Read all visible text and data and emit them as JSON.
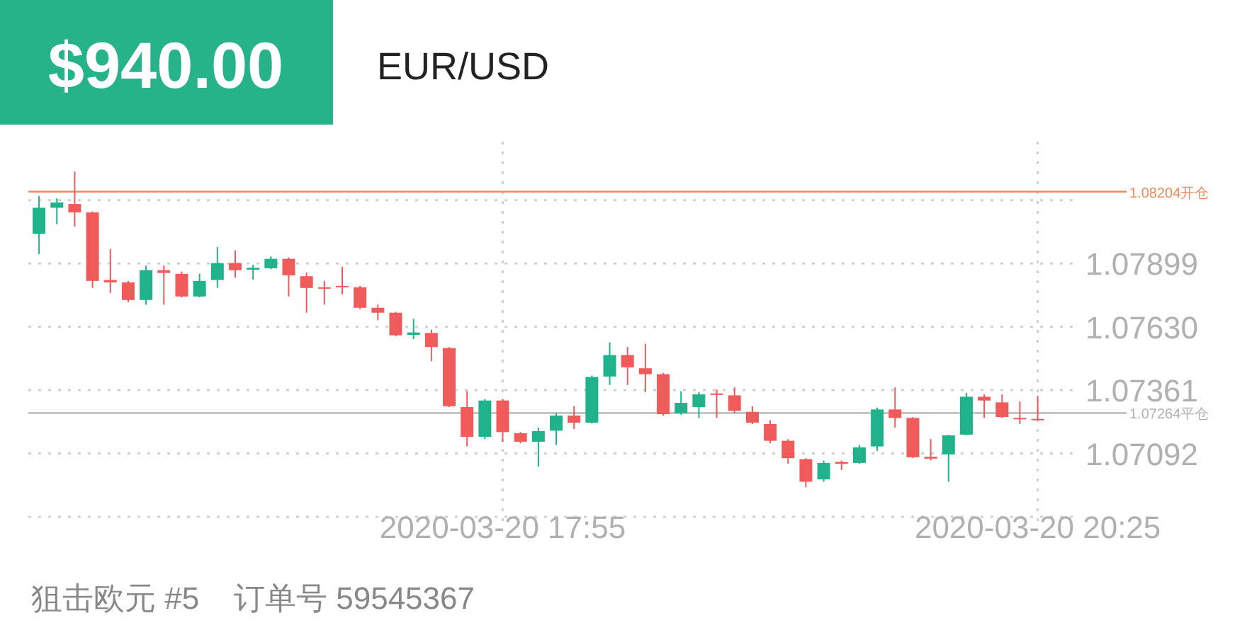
{
  "chart_data": {
    "type": "candlestick",
    "title": "$940.00",
    "subtitle": "EUR/USD",
    "annotations": [
      "狙击欧元 #5",
      "订单号 59545367"
    ],
    "x": [
      "2020-03-20T15:45",
      "2020-03-20T15:50",
      "2020-03-20T15:55",
      "2020-03-20T16:00",
      "2020-03-20T16:05",
      "2020-03-20T16:10",
      "2020-03-20T16:15",
      "2020-03-20T16:20",
      "2020-03-20T16:25",
      "2020-03-20T16:30",
      "2020-03-20T16:35",
      "2020-03-20T16:40",
      "2020-03-20T16:45",
      "2020-03-20T16:50",
      "2020-03-20T16:55",
      "2020-03-20T17:00",
      "2020-03-20T17:05",
      "2020-03-20T17:10",
      "2020-03-20T17:15",
      "2020-03-20T17:20",
      "2020-03-20T17:25",
      "2020-03-20T17:30",
      "2020-03-20T17:35",
      "2020-03-20T17:40",
      "2020-03-20T17:45",
      "2020-03-20T17:50",
      "2020-03-20T17:55",
      "2020-03-20T18:00",
      "2020-03-20T18:05",
      "2020-03-20T18:10",
      "2020-03-20T18:15",
      "2020-03-20T18:20",
      "2020-03-20T18:25",
      "2020-03-20T18:30",
      "2020-03-20T18:35",
      "2020-03-20T18:40",
      "2020-03-20T18:45",
      "2020-03-20T18:50",
      "2020-03-20T18:55",
      "2020-03-20T19:00",
      "2020-03-20T19:05",
      "2020-03-20T19:10",
      "2020-03-20T19:15",
      "2020-03-20T19:20",
      "2020-03-20T19:25",
      "2020-03-20T19:30",
      "2020-03-20T19:35",
      "2020-03-20T19:40",
      "2020-03-20T19:45",
      "2020-03-20T19:50",
      "2020-03-20T19:55",
      "2020-03-20T20:00",
      "2020-03-20T20:05",
      "2020-03-20T20:10",
      "2020-03-20T20:15",
      "2020-03-20T20:20",
      "2020-03-20T20:25"
    ],
    "ohlc": [
      [
        1.08025,
        1.08186,
        1.07939,
        1.08136
      ],
      [
        1.08136,
        1.08176,
        1.08066,
        1.08158
      ],
      [
        1.08152,
        1.0829,
        1.08056,
        1.08116
      ],
      [
        1.08116,
        1.0812,
        1.07795,
        1.07825
      ],
      [
        1.07829,
        1.07961,
        1.07774,
        1.07819
      ],
      [
        1.07819,
        1.07825,
        1.07735,
        1.07744
      ],
      [
        1.07744,
        1.07891,
        1.07724,
        1.07871
      ],
      [
        1.07871,
        1.07891,
        1.07724,
        1.07859
      ],
      [
        1.07855,
        1.07865,
        1.07755,
        1.07759
      ],
      [
        1.07759,
        1.07855,
        1.07755,
        1.07825
      ],
      [
        1.07829,
        1.07969,
        1.07795,
        1.07901
      ],
      [
        1.07901,
        1.07955,
        1.07839,
        1.07871
      ],
      [
        1.07873,
        1.07893,
        1.07831,
        1.07881
      ],
      [
        1.07879,
        1.07929,
        1.07875,
        1.07919
      ],
      [
        1.07919,
        1.07925,
        1.07759,
        1.07849
      ],
      [
        1.07845,
        1.07861,
        1.0769,
        1.07795
      ],
      [
        1.07798,
        1.07825,
        1.07724,
        1.07795
      ],
      [
        1.07804,
        1.07885,
        1.07768,
        1.07801
      ],
      [
        1.07798,
        1.07804,
        1.07705,
        1.07711
      ],
      [
        1.07711,
        1.07724,
        1.07658,
        1.0769
      ],
      [
        1.0769,
        1.07694,
        1.0759,
        1.07594
      ],
      [
        1.07596,
        1.07664,
        1.07578,
        1.07606
      ],
      [
        1.07604,
        1.07618,
        1.07484,
        1.07544
      ],
      [
        1.0754,
        1.07544,
        1.07289,
        1.07293
      ],
      [
        1.07289,
        1.07357,
        1.07122,
        1.07163
      ],
      [
        1.07163,
        1.07323,
        1.07153,
        1.07317
      ],
      [
        1.07317,
        1.07323,
        1.07142,
        1.07183
      ],
      [
        1.07178,
        1.07183,
        1.07136,
        1.07142
      ],
      [
        1.07142,
        1.07202,
        1.07036,
        1.07187
      ],
      [
        1.07189,
        1.07263,
        1.07128,
        1.07253
      ],
      [
        1.07253,
        1.07293,
        1.07196,
        1.07223
      ],
      [
        1.07223,
        1.07423,
        1.07219,
        1.07417
      ],
      [
        1.07419,
        1.07564,
        1.07383,
        1.0751
      ],
      [
        1.0751,
        1.07544,
        1.07383,
        1.07458
      ],
      [
        1.07454,
        1.07558,
        1.07353,
        1.07429
      ],
      [
        1.07429,
        1.07434,
        1.07253,
        1.07259
      ],
      [
        1.07263,
        1.07357,
        1.07257,
        1.07307
      ],
      [
        1.07289,
        1.07353,
        1.07243,
        1.07343
      ],
      [
        1.07347,
        1.07363,
        1.07243,
        1.07341
      ],
      [
        1.07339,
        1.07373,
        1.07263,
        1.07273
      ],
      [
        1.07269,
        1.07293,
        1.07217,
        1.07223
      ],
      [
        1.07217,
        1.07233,
        1.07136,
        1.07146
      ],
      [
        1.07146,
        1.07153,
        1.07048,
        1.07072
      ],
      [
        1.07068,
        1.07072,
        1.06948,
        1.06972
      ],
      [
        1.06982,
        1.07062,
        1.06972,
        1.07052
      ],
      [
        1.07056,
        1.07062,
        1.07022,
        1.07048
      ],
      [
        1.07052,
        1.07128,
        1.07048,
        1.07118
      ],
      [
        1.07122,
        1.07287,
        1.07103,
        1.07279
      ],
      [
        1.07279,
        1.07373,
        1.07202,
        1.07243
      ],
      [
        1.07243,
        1.07247,
        1.07072,
        1.07076
      ],
      [
        1.07078,
        1.07153,
        1.07062,
        1.0707
      ],
      [
        1.07088,
        1.07172,
        1.06972,
        1.07169
      ],
      [
        1.07172,
        1.07349,
        1.07169,
        1.07333
      ],
      [
        1.07333,
        1.07343,
        1.07243,
        1.07317
      ],
      [
        1.07309,
        1.07343,
        1.07243,
        1.07247
      ],
      [
        1.07243,
        1.07313,
        1.07217,
        1.07237
      ],
      [
        1.07239,
        1.07337,
        1.07233,
        1.07233
      ]
    ],
    "colors": [
      "#1fb28b",
      "#1fb28b",
      "#ef5b5b",
      "#ef5b5b",
      "#ef5b5b",
      "#ef5b5b",
      "#1fb28b",
      "#ef5b5b",
      "#ef5b5b",
      "#1fb28b",
      "#1fb28b",
      "#ef5b5b",
      "#1fb28b",
      "#1fb28b",
      "#ef5b5b",
      "#ef5b5b",
      "#ef5b5b",
      "#ef5b5b",
      "#ef5b5b",
      "#ef5b5b",
      "#ef5b5b",
      "#1fb28b",
      "#ef5b5b",
      "#ef5b5b",
      "#ef5b5b",
      "#1fb28b",
      "#ef5b5b",
      "#ef5b5b",
      "#1fb28b",
      "#1fb28b",
      "#ef5b5b",
      "#1fb28b",
      "#1fb28b",
      "#ef5b5b",
      "#ef5b5b",
      "#ef5b5b",
      "#1fb28b",
      "#1fb28b",
      "#ef5b5b",
      "#ef5b5b",
      "#ef5b5b",
      "#ef5b5b",
      "#ef5b5b",
      "#ef5b5b",
      "#1fb28b",
      "#ef5b5b",
      "#1fb28b",
      "#1fb28b",
      "#ef5b5b",
      "#ef5b5b",
      "#ef5b5b",
      "#1fb28b",
      "#1fb28b",
      "#ef5b5b",
      "#ef5b5b",
      "#ef5b5b",
      "#ef5b5b"
    ],
    "xlim": [
      "2020-03-20T15:42",
      "2020-03-20T20:36"
    ],
    "xticks": [
      {
        "value": "2020-03-20T17:55",
        "label": "2020-03-20 17:55"
      },
      {
        "value": "2020-03-20T20:25",
        "label": "2020-03-20 20:25"
      }
    ],
    "ylim": [
      1.06823,
      1.08417
    ],
    "yticks": [
      {
        "value": 1.06823,
        "label": null
      },
      1.07092,
      1.07361,
      {
        "value": 1.0763,
        "label": "1.07630"
      },
      1.07899,
      {
        "value": 1.08168,
        "label": null
      }
    ],
    "ref_lines": [
      {
        "axis": "y",
        "value": 1.08204,
        "label": "1.08204开仓",
        "color": "#f08a5d"
      },
      {
        "axis": "y",
        "value": 1.07264,
        "label": "1.07264平仓",
        "color": "#b0b0b0"
      }
    ],
    "grid": true
  }
}
